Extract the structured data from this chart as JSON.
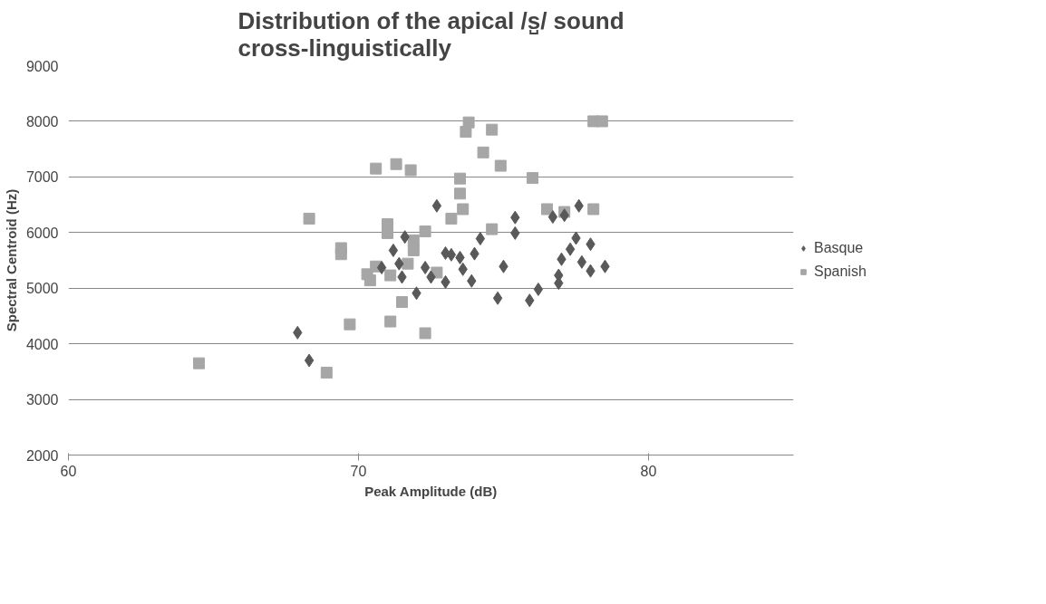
{
  "chart_data": {
    "type": "scatter",
    "title": "Distribution of the apical /s̺/ sound\ncross-linguistically",
    "xlabel": "Peak Amplitude (dB)",
    "ylabel": "Spectral Centroid (Hz)",
    "xlim": [
      60,
      85
    ],
    "xticks": [
      60,
      70,
      80
    ],
    "ylim": [
      2000,
      9000
    ],
    "yticks": [
      2000,
      3000,
      4000,
      5000,
      6000,
      7000,
      8000,
      9000
    ],
    "grid": "y",
    "legend": "right",
    "series": [
      {
        "name": "Basque",
        "color": "#595959",
        "marker": "diamond",
        "x": [
          67.9,
          68.3,
          72.7,
          71.6,
          71.2,
          71.4,
          70.8,
          71.5,
          72.0,
          72.3,
          72.5,
          73.0,
          73.0,
          73.2,
          73.5,
          73.6,
          73.9,
          74.0,
          74.2,
          75.4,
          75.4,
          75.0,
          74.8,
          75.9,
          76.2,
          76.7,
          77.1,
          77.6,
          77.5,
          77.3,
          77.0,
          76.9,
          76.9,
          77.7,
          78.0,
          78.0,
          78.5
        ],
        "values": [
          4200,
          3700,
          6480,
          5920,
          5680,
          5440,
          5370,
          5200,
          4910,
          5370,
          5200,
          5630,
          5110,
          5600,
          5550,
          5340,
          5130,
          5620,
          5890,
          6270,
          5990,
          5390,
          4820,
          4780,
          4980,
          6280,
          6310,
          6480,
          5900,
          5700,
          5520,
          5230,
          5090,
          5470,
          5790,
          5310,
          5390
        ]
      },
      {
        "name": "Spanish",
        "color": "#a6a6a6",
        "marker": "square",
        "x": [
          64.5,
          68.3,
          70.6,
          71.3,
          71.8,
          69.4,
          69.4,
          71.0,
          71.0,
          72.3,
          71.9,
          71.9,
          71.7,
          70.6,
          70.3,
          70.4,
          71.1,
          72.7,
          71.5,
          69.7,
          71.1,
          72.3,
          68.9,
          73.8,
          73.7,
          74.6,
          74.3,
          74.9,
          73.5,
          73.5,
          73.6,
          73.2,
          74.6,
          76.0,
          76.5,
          77.1,
          78.1,
          78.1,
          78.4
        ],
        "values": [
          3650,
          6250,
          7150,
          7230,
          7120,
          5720,
          5610,
          6150,
          5990,
          6020,
          5860,
          5680,
          5440,
          5390,
          5250,
          5140,
          5230,
          5280,
          4750,
          4350,
          4400,
          4190,
          3480,
          7980,
          7810,
          7850,
          7440,
          7200,
          6970,
          6700,
          6420,
          6250,
          6060,
          6980,
          6420,
          6370,
          6420,
          8000,
          8000
        ]
      }
    ]
  }
}
